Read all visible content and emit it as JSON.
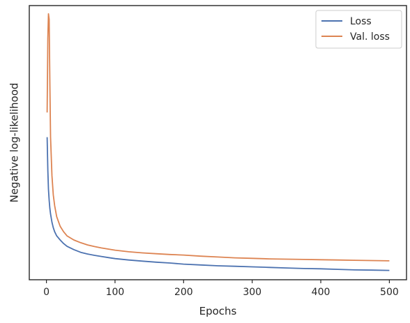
{
  "chart_data": {
    "type": "line",
    "xlabel": "Epochs",
    "ylabel": "Negative log-likelihood",
    "xlim": [
      -25,
      525
    ],
    "ylim": [
      0.0,
      1.0
    ],
    "xticks": [
      0,
      100,
      200,
      300,
      400,
      500
    ],
    "y_tick_labels_shown": false,
    "grid": false,
    "legend_position": "top-right",
    "series": [
      {
        "name": "Loss",
        "color": "#4c72b0",
        "x": [
          1,
          2,
          3,
          4,
          5,
          6,
          8,
          10,
          12,
          15,
          20,
          25,
          30,
          40,
          50,
          60,
          70,
          80,
          90,
          100,
          120,
          140,
          160,
          180,
          200,
          225,
          250,
          275,
          300,
          325,
          350,
          375,
          400,
          425,
          450,
          475,
          500
        ],
        "y": [
          0.52,
          0.4,
          0.33,
          0.29,
          0.26,
          0.24,
          0.21,
          0.19,
          0.175,
          0.16,
          0.145,
          0.132,
          0.122,
          0.11,
          0.1,
          0.094,
          0.089,
          0.085,
          0.081,
          0.077,
          0.072,
          0.068,
          0.064,
          0.061,
          0.057,
          0.054,
          0.051,
          0.049,
          0.047,
          0.045,
          0.043,
          0.041,
          0.04,
          0.038,
          0.036,
          0.035,
          0.034
        ]
      },
      {
        "name": "Val. loss",
        "color": "#dd8452",
        "x": [
          1,
          2,
          3,
          4,
          5,
          6,
          8,
          10,
          12,
          15,
          20,
          25,
          30,
          40,
          50,
          60,
          70,
          80,
          90,
          100,
          120,
          140,
          160,
          180,
          200,
          225,
          250,
          275,
          300,
          325,
          350,
          375,
          400,
          425,
          450,
          475,
          500
        ],
        "y": [
          0.61,
          0.88,
          0.97,
          0.95,
          0.72,
          0.52,
          0.38,
          0.31,
          0.27,
          0.23,
          0.195,
          0.175,
          0.16,
          0.145,
          0.135,
          0.127,
          0.121,
          0.116,
          0.112,
          0.108,
          0.102,
          0.098,
          0.095,
          0.092,
          0.09,
          0.086,
          0.083,
          0.08,
          0.078,
          0.076,
          0.075,
          0.074,
          0.073,
          0.072,
          0.071,
          0.07,
          0.069
        ]
      }
    ]
  }
}
